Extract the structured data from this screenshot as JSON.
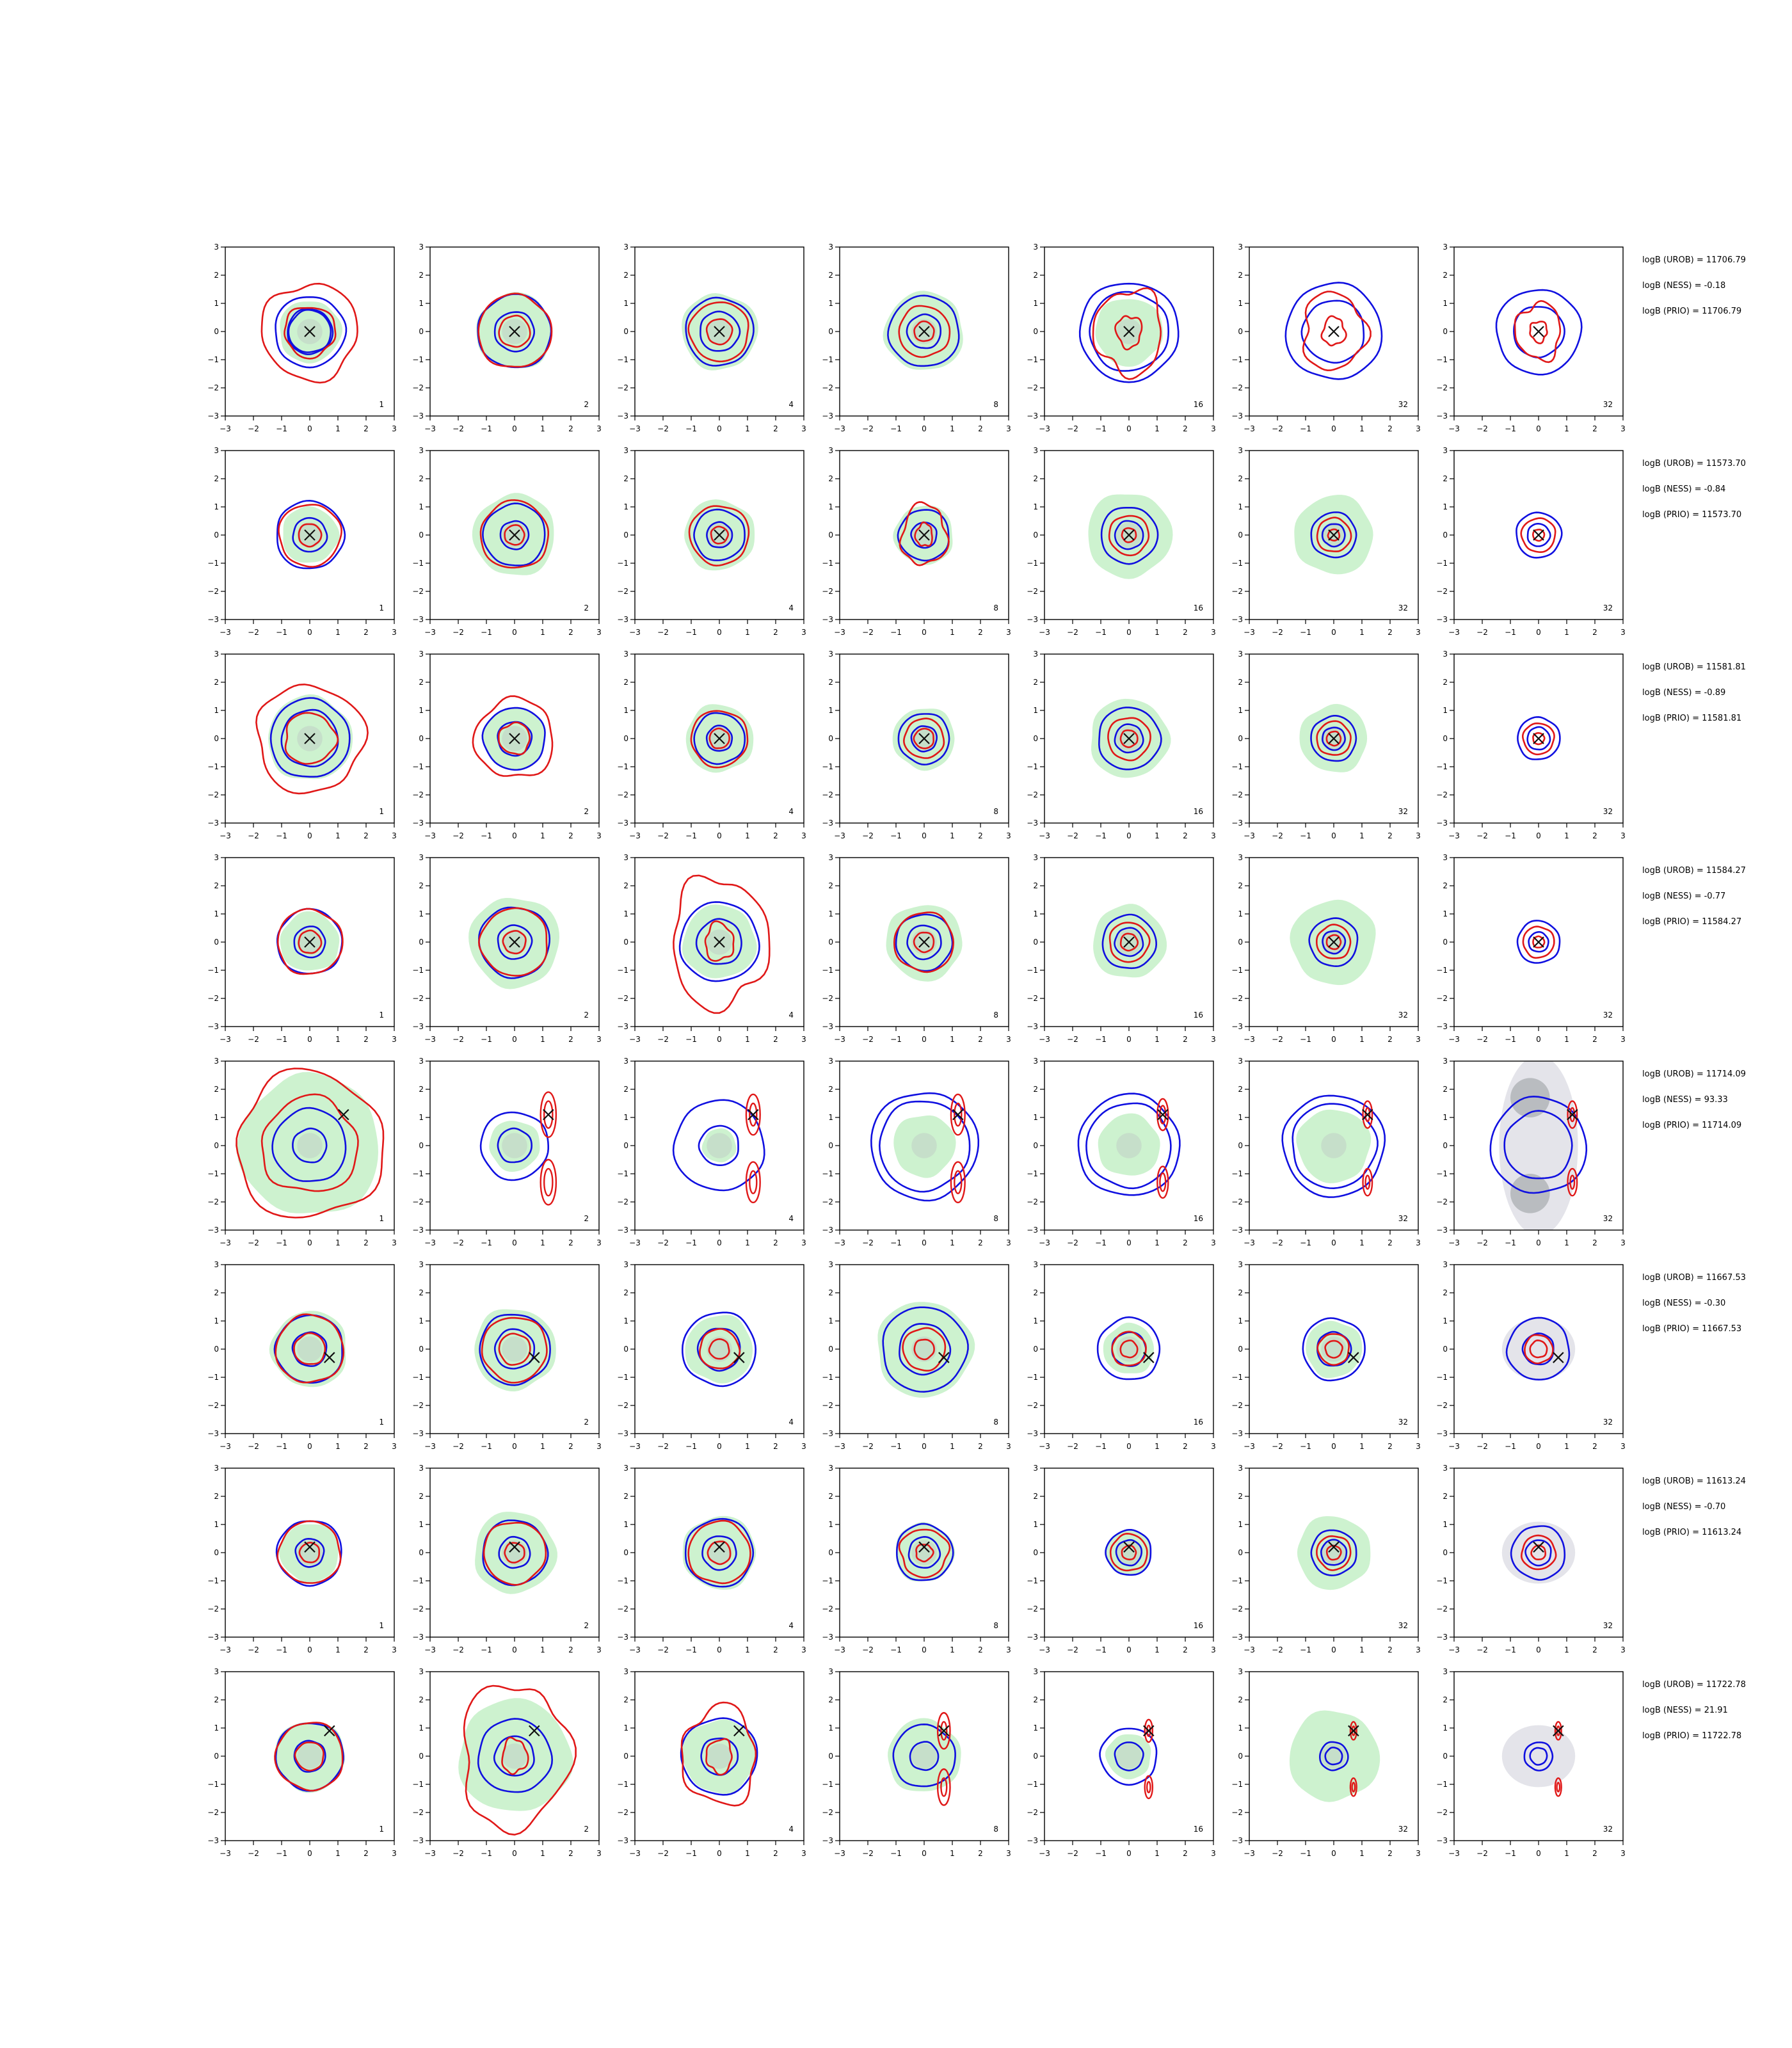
{
  "figure": {
    "type": "contour-grid",
    "background": "#ffffff",
    "colors": {
      "fill": "#cdf2cf",
      "fill_grey": "#e4e4ea",
      "inner_grey": "#b9bcc0",
      "blue": "#1010e0",
      "red": "#e01818",
      "marker": "#111111",
      "axis": "#000000"
    }
  },
  "chart_data": {
    "type": "contour",
    "xlim": [
      -3,
      3
    ],
    "ylim": [
      -3,
      3
    ],
    "xticks": [
      "−3",
      "−2",
      "−1",
      "0",
      "1",
      "2",
      "3"
    ],
    "yticks": [
      "3",
      "2",
      "1",
      "0",
      "−1",
      "−2",
      "−3"
    ],
    "grid": false,
    "rows": [
      {
        "marker": [
          0,
          0
        ],
        "fill_style": "green",
        "panels": [
          {
            "label": "1",
            "fill": 1.1,
            "blue": [
              1.25,
              0.8,
              0.75
            ],
            "red": [
              1.7,
              0.9
            ],
            "red_style": "wobbly"
          },
          {
            "label": "2",
            "fill": 1.35,
            "blue": [
              1.3,
              0.7
            ],
            "red": [
              1.3,
              0.55
            ]
          },
          {
            "label": "4",
            "fill": 1.35,
            "blue": [
              1.2,
              0.7
            ],
            "red": [
              1.05,
              0.45
            ]
          },
          {
            "label": "8",
            "fill": 1.4,
            "blue": [
              1.25,
              0.6
            ],
            "red": [
              0.9,
              0.35
            ]
          },
          {
            "label": "16",
            "fill": 1.2,
            "blue": [
              1.75,
              1.4
            ],
            "red": [
              1.2,
              0.45
            ],
            "red_style": "blob"
          },
          {
            "label": "32",
            "fill": 0,
            "blue": [
              1.7,
              1.1
            ],
            "red": [
              1.1,
              0.4
            ],
            "red_style": "blob"
          },
          {
            "label": "32",
            "fill": 0,
            "blue": [
              1.5,
              0.9
            ],
            "red": [
              0.8,
              0.3
            ],
            "red_style": "blob"
          }
        ],
        "stats": {
          "urob": "logB (UROB) = 11706.79",
          "ness": "logB (NESS) = -0.18",
          "prio": "logB (PRIO) = 11706.79"
        }
      },
      {
        "marker": [
          0,
          0
        ],
        "fill_style": "green",
        "panels": [
          {
            "label": "1",
            "fill": 1.0,
            "blue": [
              1.2,
              0.6
            ],
            "red": [
              1.1,
              0.4
            ]
          },
          {
            "label": "2",
            "fill": 1.45,
            "blue": [
              1.1,
              0.5
            ],
            "red": [
              1.2,
              0.35
            ]
          },
          {
            "label": "4",
            "fill": 1.25,
            "blue": [
              0.9,
              0.45
            ],
            "red": [
              1.05,
              0.3
            ]
          },
          {
            "label": "8",
            "fill": 1.05,
            "blue": [
              0.9,
              0.45
            ],
            "red": [
              0.8,
              0.3
            ],
            "red_style": "lobes"
          },
          {
            "label": "16",
            "fill": 1.5,
            "blue": [
              1.0,
              0.5
            ],
            "red": [
              0.7,
              0.25
            ]
          },
          {
            "label": "32",
            "fill": 1.4,
            "blue": [
              0.8,
              0.4
            ],
            "red": [
              0.6,
              0.2
            ]
          },
          {
            "label": "32",
            "fill": 0,
            "blue": [
              0.8,
              0.4
            ],
            "red": [
              0.6,
              0.2
            ]
          }
        ],
        "stats": {
          "urob": "logB (UROB) = 11573.70",
          "ness": "logB (NESS) = -0.84",
          "prio": "logB (PRIO) = 11573.70"
        }
      },
      {
        "marker": [
          0,
          0
        ],
        "fill_style": "green",
        "panels": [
          {
            "label": "1",
            "fill": 1.5,
            "blue": [
              1.4,
              1.0
            ],
            "red": [
              1.9,
              0.9
            ],
            "red_style": "wobbly"
          },
          {
            "label": "2",
            "fill": 1.1,
            "blue": [
              1.1,
              0.6
            ],
            "red": [
              1.4,
              0.55
            ],
            "red_style": "wobbly"
          },
          {
            "label": "4",
            "fill": 1.2,
            "blue": [
              0.9,
              0.45
            ],
            "red": [
              1.0,
              0.35
            ]
          },
          {
            "label": "8",
            "fill": 1.1,
            "blue": [
              0.9,
              0.45
            ],
            "red": [
              0.7,
              0.35
            ]
          },
          {
            "label": "16",
            "fill": 1.4,
            "blue": [
              1.1,
              0.5
            ],
            "red": [
              0.75,
              0.3
            ]
          },
          {
            "label": "32",
            "fill": 1.2,
            "blue": [
              0.8,
              0.4
            ],
            "red": [
              0.6,
              0.25
            ]
          },
          {
            "label": "32",
            "fill": 0,
            "blue": [
              0.75,
              0.4
            ],
            "red": [
              0.55,
              0.2
            ]
          }
        ],
        "stats": {
          "urob": "logB (UROB) = 11581.81",
          "ness": "logB (NESS) = -0.89",
          "prio": "logB (PRIO) = 11581.81"
        }
      },
      {
        "marker": [
          0,
          0
        ],
        "fill_style": "green",
        "panels": [
          {
            "label": "1",
            "fill": 1.05,
            "blue": [
              1.15,
              0.55
            ],
            "red": [
              1.15,
              0.4
            ]
          },
          {
            "label": "2",
            "fill": 1.6,
            "blue": [
              1.25,
              0.6
            ],
            "red": [
              1.2,
              0.4
            ]
          },
          {
            "label": "4",
            "fill": 1.3,
            "blue": [
              1.4,
              0.8
            ],
            "red": [
              1.7,
              0.5
            ],
            "red_style": "lobes"
          },
          {
            "label": "8",
            "fill": 1.35,
            "blue": [
              1.0,
              0.6
            ],
            "red": [
              1.05,
              0.35
            ]
          },
          {
            "label": "16",
            "fill": 1.3,
            "blue": [
              0.95,
              0.5
            ],
            "red": [
              0.7,
              0.3
            ]
          },
          {
            "label": "32",
            "fill": 1.5,
            "blue": [
              0.85,
              0.4
            ],
            "red": [
              0.6,
              0.25
            ]
          },
          {
            "label": "32",
            "fill": 0,
            "blue": [
              0.75,
              0.35
            ],
            "red": [
              0.55,
              0.2
            ]
          }
        ],
        "stats": {
          "urob": "logB (UROB) = 11584.27",
          "ness": "logB (NESS) = -0.77",
          "prio": "logB (PRIO) = 11584.27"
        }
      },
      {
        "marker": [
          1.2,
          1.1
        ],
        "fill_style": "green",
        "panels": [
          {
            "label": "1",
            "fill": 2.5,
            "blue": [
              1.3,
              0.6
            ],
            "red": [
              2.6,
              1.7
            ],
            "red_style": "wobbly"
          },
          {
            "label": "2",
            "fill": 0.9,
            "blue": [
              1.2,
              0.6
            ],
            "red": [
              0.5,
              0.3
            ],
            "red_style": "bimodal-right"
          },
          {
            "label": "4",
            "fill": 0.6,
            "blue": [
              1.6,
              0.7
            ],
            "red": [
              0.45,
              0.25
            ],
            "red_style": "bimodal-right"
          },
          {
            "label": "8",
            "fill": 1.1,
            "blue": [
              1.9,
              1.6
            ],
            "red": [
              0.45,
              0.25
            ],
            "red_style": "bimodal-right"
          },
          {
            "label": "16",
            "fill": 1.1,
            "blue": [
              1.8,
              1.5
            ],
            "red": [
              0.35,
              0.2
            ],
            "red_style": "crescent"
          },
          {
            "label": "32",
            "fill": 1.3,
            "blue": [
              1.8,
              1.5
            ],
            "red": [
              0.3,
              0.15
            ],
            "red_style": "crescent"
          },
          {
            "label": "32",
            "fill": 0,
            "blue": [
              1.7,
              1.2
            ],
            "red": [
              0.3,
              0.15
            ],
            "red_style": "crescent",
            "grey": "triple"
          }
        ],
        "stats": {
          "urob": "logB (UROB) = 11714.09",
          "ness": "logB (NESS) = 93.33",
          "prio": "logB (PRIO) = 11714.09"
        }
      },
      {
        "marker": [
          0.7,
          -0.3
        ],
        "fill_style": "green",
        "panels": [
          {
            "label": "1",
            "fill": 1.35,
            "blue": [
              1.2,
              0.6
            ],
            "red": [
              1.2,
              0.55
            ]
          },
          {
            "label": "2",
            "fill": 1.45,
            "blue": [
              1.25,
              0.7
            ],
            "red": [
              1.15,
              0.55
            ]
          },
          {
            "label": "4",
            "fill": 1.2,
            "blue": [
              1.3,
              0.75
            ],
            "red": [
              0.7,
              0.35
            ]
          },
          {
            "label": "8",
            "fill": 1.7,
            "blue": [
              1.5,
              0.9
            ],
            "red": [
              0.75,
              0.35
            ]
          },
          {
            "label": "16",
            "fill": 0.9,
            "blue": [
              1.1,
              0.6
            ],
            "red": [
              0.6,
              0.3
            ]
          },
          {
            "label": "32",
            "fill": 1.0,
            "blue": [
              1.1,
              0.6
            ],
            "red": [
              0.55,
              0.3
            ]
          },
          {
            "label": "32",
            "fill": 0,
            "blue": [
              1.1,
              0.55
            ],
            "red": [
              0.5,
              0.3
            ],
            "grey": "single"
          }
        ],
        "stats": {
          "urob": "logB (UROB) = 11667.53",
          "ness": "logB (NESS) = -0.30",
          "prio": "logB (PRIO) = 11667.53"
        }
      },
      {
        "marker": [
          0,
          0.2
        ],
        "fill_style": "green",
        "panels": [
          {
            "label": "1",
            "fill": 1.05,
            "blue": [
              1.15,
              0.5
            ],
            "red": [
              1.1,
              0.35
            ]
          },
          {
            "label": "2",
            "fill": 1.45,
            "blue": [
              1.15,
              0.55
            ],
            "red": [
              1.1,
              0.35
            ]
          },
          {
            "label": "4",
            "fill": 1.3,
            "blue": [
              1.2,
              0.6
            ],
            "red": [
              1.1,
              0.4
            ]
          },
          {
            "label": "8",
            "fill": 1.05,
            "blue": [
              1.0,
              0.55
            ],
            "red": [
              0.85,
              0.3
            ],
            "red_style": "wobbly"
          },
          {
            "label": "16",
            "fill": 0.8,
            "blue": [
              0.8,
              0.45
            ],
            "red": [
              0.65,
              0.25
            ]
          },
          {
            "label": "32",
            "fill": 1.3,
            "blue": [
              0.8,
              0.45
            ],
            "red": [
              0.6,
              0.25
            ]
          },
          {
            "label": "32",
            "fill": 0,
            "blue": [
              0.95,
              0.45
            ],
            "red": [
              0.6,
              0.25
            ],
            "grey": "single"
          }
        ],
        "stats": {
          "urob": "logB (UROB) = 11613.24",
          "ness": "logB (NESS) = -0.70",
          "prio": "logB (PRIO) = 11613.24"
        }
      },
      {
        "marker": [
          0.7,
          0.9
        ],
        "fill_style": "green",
        "panels": [
          {
            "label": "1",
            "fill": 1.25,
            "blue": [
              1.2,
              0.55
            ],
            "red": [
              1.2,
              0.5
            ]
          },
          {
            "label": "2",
            "fill": 2.0,
            "blue": [
              1.3,
              0.7
            ],
            "red": [
              1.9,
              0.45
            ],
            "red_style": "lobes"
          },
          {
            "label": "4",
            "fill": 1.3,
            "blue": [
              1.35,
              0.65
            ],
            "red": [
              1.3,
              0.45
            ],
            "red_style": "lobes"
          },
          {
            "label": "8",
            "fill": 1.3,
            "blue": [
              1.1,
              0.5
            ],
            "red": [
              0.4,
              0.2
            ],
            "red_style": "bimodal-right"
          },
          {
            "label": "16",
            "fill": 0.8,
            "blue": [
              1.0,
              0.5
            ],
            "red": [
              0.25,
              0.12
            ],
            "red_style": "bimodal-right"
          },
          {
            "label": "32",
            "fill": 1.6,
            "blue": [
              0.5,
              0.3
            ],
            "red": [
              0.2,
              0.1
            ],
            "red_style": "bimodal-right"
          },
          {
            "label": "32",
            "fill": 0,
            "blue": [
              0.5,
              0.3
            ],
            "red": [
              0.2,
              0.1
            ],
            "red_style": "bimodal-right",
            "grey": "single"
          }
        ],
        "stats": {
          "urob": "logB (UROB) = 11722.78",
          "ness": "logB (NESS) = 21.91",
          "prio": "logB (PRIO) = 11722.78"
        }
      }
    ]
  }
}
